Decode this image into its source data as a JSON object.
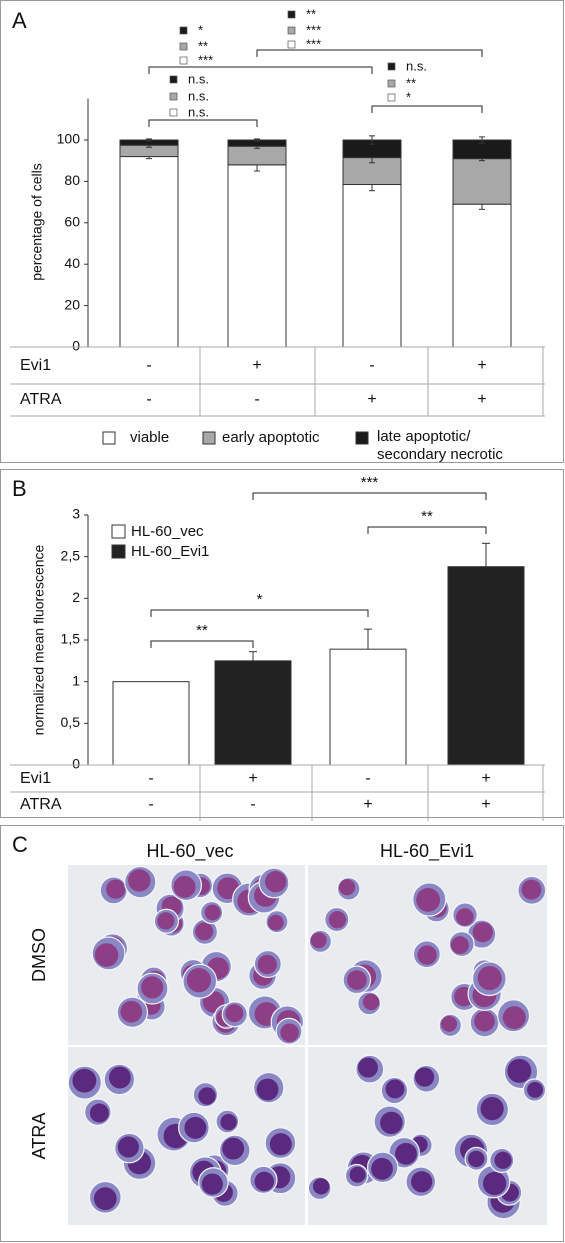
{
  "chart_data": [
    {
      "type": "stacked_bar",
      "label": "A",
      "ylabel": "percentage of cells",
      "ylim": [
        0,
        120
      ],
      "yticks": [
        0,
        20,
        40,
        60,
        80,
        100
      ],
      "series": [
        {
          "name": "viable",
          "color": "#ffffff",
          "values": [
            92,
            88,
            78.5,
            69
          ],
          "errors": [
            1,
            3,
            3,
            2.5
          ]
        },
        {
          "name": "early apoptotic",
          "color": "#a8a8a8",
          "values": [
            5.5,
            9,
            13,
            22
          ],
          "errors": [
            1,
            1,
            2.5,
            1
          ]
        },
        {
          "name": "late apoptotic/ secondary necrotic",
          "color": "#1a1a1a",
          "values": [
            2.5,
            3,
            8.5,
            9
          ],
          "errors": [
            0.5,
            0.5,
            2,
            1.5
          ]
        }
      ],
      "conditions": [
        {
          "name": "Evi1",
          "values": [
            "-",
            "+",
            "-",
            "+"
          ]
        },
        {
          "name": "ATRA",
          "values": [
            "-",
            "-",
            "+",
            "+"
          ]
        }
      ],
      "significance": [
        {
          "labels": [
            "n.s.",
            "n.s.",
            "n.s."
          ]
        },
        {
          "labels": [
            "*",
            "**",
            "***"
          ]
        },
        {
          "labels": [
            "**",
            "***",
            "***"
          ]
        },
        {
          "labels": [
            "n.s.",
            "**",
            "*"
          ]
        }
      ]
    },
    {
      "type": "bar",
      "label": "B",
      "ylabel": "normalized mean fluorescence",
      "ylim": [
        0,
        3
      ],
      "yticks": [
        0,
        {
          "value": 0.5,
          "label": "0,5"
        },
        1,
        {
          "value": 1.5,
          "label": "1,5"
        },
        2,
        {
          "value": 2.5,
          "label": "2,5"
        },
        3
      ],
      "series": [
        {
          "name": "HL-60_vec",
          "color": "#ffffff",
          "values": [
            1.0,
            null,
            1.39,
            null
          ],
          "errors": [
            null,
            null,
            0.24,
            null
          ]
        },
        {
          "name": "HL-60_Evi1",
          "color": "#222222",
          "values": [
            null,
            1.25,
            null,
            2.38
          ],
          "errors": [
            null,
            0.11,
            null,
            0.28
          ]
        }
      ],
      "conditions": [
        {
          "name": "Evi1",
          "values": [
            "-",
            "+",
            "-",
            "+"
          ]
        },
        {
          "name": "ATRA",
          "values": [
            "-",
            "-",
            "+",
            "+"
          ]
        }
      ],
      "significance": [
        "**",
        "*",
        "**",
        "***"
      ]
    }
  ],
  "panel_c": {
    "label": "C",
    "columns": [
      "HL-60_vec",
      "HL-60_Evi1"
    ],
    "rows": [
      "DMSO",
      "ATRA"
    ]
  }
}
